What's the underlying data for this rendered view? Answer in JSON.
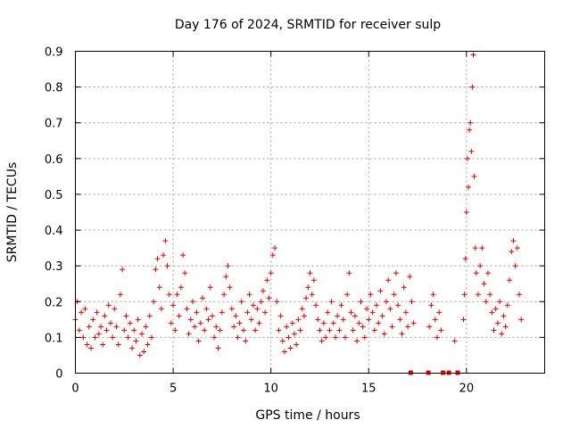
{
  "chart_data": {
    "type": "scatter",
    "title": "Day 176 of 2024, SRMTID for receiver sulp",
    "xlabel": "GPS time / hours",
    "ylabel": "SRMTID / TECUs",
    "xlim": [
      0,
      24
    ],
    "ylim": [
      0,
      0.9
    ],
    "x_ticks": [
      0,
      5,
      10,
      15,
      20
    ],
    "y_ticks": [
      0,
      0.1,
      0.2,
      0.3,
      0.4,
      0.5,
      0.6,
      0.7,
      0.8,
      0.9
    ],
    "grid": true,
    "marker": "+",
    "color": "#e00000",
    "series": [
      {
        "name": "SRMTID",
        "points": [
          [
            0.0,
            0.15
          ],
          [
            0.1,
            0.2
          ],
          [
            0.2,
            0.12
          ],
          [
            0.3,
            0.17
          ],
          [
            0.4,
            0.1
          ],
          [
            0.5,
            0.18
          ],
          [
            0.6,
            0.08
          ],
          [
            0.7,
            0.13
          ],
          [
            0.8,
            0.07
          ],
          [
            0.9,
            0.15
          ],
          [
            1.0,
            0.1
          ],
          [
            1.1,
            0.17
          ],
          [
            1.2,
            0.11
          ],
          [
            1.3,
            0.13
          ],
          [
            1.4,
            0.08
          ],
          [
            1.5,
            0.16
          ],
          [
            1.6,
            0.12
          ],
          [
            1.7,
            0.19
          ],
          [
            1.8,
            0.14
          ],
          [
            1.9,
            0.1
          ],
          [
            2.0,
            0.18
          ],
          [
            2.1,
            0.13
          ],
          [
            2.2,
            0.08
          ],
          [
            2.3,
            0.22
          ],
          [
            2.4,
            0.29
          ],
          [
            2.5,
            0.12
          ],
          [
            2.6,
            0.16
          ],
          [
            2.7,
            0.1
          ],
          [
            2.8,
            0.14
          ],
          [
            2.9,
            0.07
          ],
          [
            3.0,
            0.12
          ],
          [
            3.1,
            0.09
          ],
          [
            3.2,
            0.15
          ],
          [
            3.3,
            0.05
          ],
          [
            3.4,
            0.11
          ],
          [
            3.5,
            0.06
          ],
          [
            3.6,
            0.13
          ],
          [
            3.7,
            0.08
          ],
          [
            3.8,
            0.16
          ],
          [
            3.9,
            0.1
          ],
          [
            4.0,
            0.2
          ],
          [
            4.1,
            0.29
          ],
          [
            4.2,
            0.32
          ],
          [
            4.3,
            0.24
          ],
          [
            4.4,
            0.18
          ],
          [
            4.5,
            0.33
          ],
          [
            4.6,
            0.37
          ],
          [
            4.7,
            0.3
          ],
          [
            4.8,
            0.22
          ],
          [
            4.9,
            0.14
          ],
          [
            5.0,
            0.19
          ],
          [
            5.1,
            0.12
          ],
          [
            5.2,
            0.22
          ],
          [
            5.3,
            0.16
          ],
          [
            5.4,
            0.24
          ],
          [
            5.5,
            0.33
          ],
          [
            5.6,
            0.28
          ],
          [
            5.7,
            0.18
          ],
          [
            5.8,
            0.11
          ],
          [
            5.9,
            0.15
          ],
          [
            6.0,
            0.2
          ],
          [
            6.1,
            0.13
          ],
          [
            6.2,
            0.17
          ],
          [
            6.3,
            0.09
          ],
          [
            6.4,
            0.14
          ],
          [
            6.5,
            0.21
          ],
          [
            6.6,
            0.12
          ],
          [
            6.7,
            0.18
          ],
          [
            6.8,
            0.15
          ],
          [
            6.9,
            0.24
          ],
          [
            7.0,
            0.16
          ],
          [
            7.1,
            0.1
          ],
          [
            7.2,
            0.13
          ],
          [
            7.3,
            0.07
          ],
          [
            7.4,
            0.12
          ],
          [
            7.5,
            0.17
          ],
          [
            7.6,
            0.22
          ],
          [
            7.7,
            0.27
          ],
          [
            7.8,
            0.3
          ],
          [
            7.9,
            0.24
          ],
          [
            8.0,
            0.18
          ],
          [
            8.1,
            0.13
          ],
          [
            8.2,
            0.16
          ],
          [
            8.3,
            0.1
          ],
          [
            8.4,
            0.14
          ],
          [
            8.5,
            0.2
          ],
          [
            8.6,
            0.12
          ],
          [
            8.7,
            0.09
          ],
          [
            8.8,
            0.17
          ],
          [
            8.9,
            0.22
          ],
          [
            9.0,
            0.15
          ],
          [
            9.1,
            0.19
          ],
          [
            9.2,
            0.12
          ],
          [
            9.3,
            0.18
          ],
          [
            9.4,
            0.14
          ],
          [
            9.5,
            0.2
          ],
          [
            9.6,
            0.23
          ],
          [
            9.7,
            0.17
          ],
          [
            9.8,
            0.26
          ],
          [
            9.9,
            0.21
          ],
          [
            10.0,
            0.28
          ],
          [
            10.1,
            0.33
          ],
          [
            10.2,
            0.35
          ],
          [
            10.3,
            0.2
          ],
          [
            10.4,
            0.12
          ],
          [
            10.5,
            0.16
          ],
          [
            10.6,
            0.09
          ],
          [
            10.7,
            0.06
          ],
          [
            10.8,
            0.13
          ],
          [
            10.9,
            0.1
          ],
          [
            11.0,
            0.07
          ],
          [
            11.1,
            0.14
          ],
          [
            11.2,
            0.11
          ],
          [
            11.3,
            0.08
          ],
          [
            11.4,
            0.15
          ],
          [
            11.5,
            0.12
          ],
          [
            11.6,
            0.18
          ],
          [
            11.7,
            0.16
          ],
          [
            11.8,
            0.21
          ],
          [
            11.9,
            0.24
          ],
          [
            12.0,
            0.28
          ],
          [
            12.1,
            0.22
          ],
          [
            12.2,
            0.26
          ],
          [
            12.3,
            0.19
          ],
          [
            12.4,
            0.15
          ],
          [
            12.5,
            0.12
          ],
          [
            12.6,
            0.09
          ],
          [
            12.7,
            0.14
          ],
          [
            12.8,
            0.1
          ],
          [
            12.9,
            0.17
          ],
          [
            13.0,
            0.12
          ],
          [
            13.1,
            0.2
          ],
          [
            13.2,
            0.14
          ],
          [
            13.3,
            0.1
          ],
          [
            13.4,
            0.16
          ],
          [
            13.5,
            0.12
          ],
          [
            13.6,
            0.19
          ],
          [
            13.7,
            0.15
          ],
          [
            13.8,
            0.1
          ],
          [
            13.9,
            0.22
          ],
          [
            14.0,
            0.28
          ],
          [
            14.1,
            0.17
          ],
          [
            14.2,
            0.12
          ],
          [
            14.3,
            0.16
          ],
          [
            14.4,
            0.09
          ],
          [
            14.5,
            0.14
          ],
          [
            14.6,
            0.2
          ],
          [
            14.7,
            0.13
          ],
          [
            14.8,
            0.1
          ],
          [
            14.9,
            0.18
          ],
          [
            15.0,
            0.15
          ],
          [
            15.1,
            0.22
          ],
          [
            15.2,
            0.17
          ],
          [
            15.3,
            0.12
          ],
          [
            15.4,
            0.19
          ],
          [
            15.5,
            0.14
          ],
          [
            15.6,
            0.23
          ],
          [
            15.7,
            0.16
          ],
          [
            15.8,
            0.11
          ],
          [
            15.9,
            0.2
          ],
          [
            16.0,
            0.26
          ],
          [
            16.1,
            0.18
          ],
          [
            16.2,
            0.13
          ],
          [
            16.3,
            0.22
          ],
          [
            16.4,
            0.28
          ],
          [
            16.5,
            0.19
          ],
          [
            16.6,
            0.15
          ],
          [
            16.7,
            0.11
          ],
          [
            16.8,
            0.24
          ],
          [
            16.9,
            0.17
          ],
          [
            17.0,
            0.13
          ],
          [
            17.1,
            0.27
          ],
          [
            17.2,
            0.2
          ],
          [
            17.3,
            0.14
          ],
          [
            18.1,
            0.13
          ],
          [
            18.2,
            0.19
          ],
          [
            18.3,
            0.22
          ],
          [
            18.4,
            0.15
          ],
          [
            18.5,
            0.1
          ],
          [
            18.6,
            0.17
          ],
          [
            18.7,
            0.12
          ],
          [
            19.4,
            0.09
          ],
          [
            19.85,
            0.15
          ],
          [
            19.9,
            0.22
          ],
          [
            19.95,
            0.32
          ],
          [
            20.0,
            0.45
          ],
          [
            20.05,
            0.6
          ],
          [
            20.1,
            0.52
          ],
          [
            20.15,
            0.68
          ],
          [
            20.2,
            0.7
          ],
          [
            20.25,
            0.62
          ],
          [
            20.3,
            0.8
          ],
          [
            20.35,
            0.89
          ],
          [
            20.4,
            0.55
          ],
          [
            20.45,
            0.35
          ],
          [
            20.5,
            0.28
          ],
          [
            20.6,
            0.22
          ],
          [
            20.7,
            0.3
          ],
          [
            20.8,
            0.35
          ],
          [
            20.9,
            0.25
          ],
          [
            21.0,
            0.2
          ],
          [
            21.1,
            0.28
          ],
          [
            21.2,
            0.22
          ],
          [
            21.3,
            0.17
          ],
          [
            21.4,
            0.12
          ],
          [
            21.5,
            0.18
          ],
          [
            21.6,
            0.14
          ],
          [
            21.7,
            0.2
          ],
          [
            21.8,
            0.11
          ],
          [
            21.9,
            0.16
          ],
          [
            22.0,
            0.13
          ],
          [
            22.1,
            0.19
          ],
          [
            22.2,
            0.26
          ],
          [
            22.3,
            0.34
          ],
          [
            22.4,
            0.37
          ],
          [
            22.5,
            0.3
          ],
          [
            22.6,
            0.35
          ],
          [
            22.7,
            0.22
          ],
          [
            22.8,
            0.15
          ]
        ]
      }
    ],
    "gap_markers_x": [
      17.15,
      18.05,
      18.8,
      19.1,
      19.55
    ],
    "gap_markers_y": 0
  }
}
